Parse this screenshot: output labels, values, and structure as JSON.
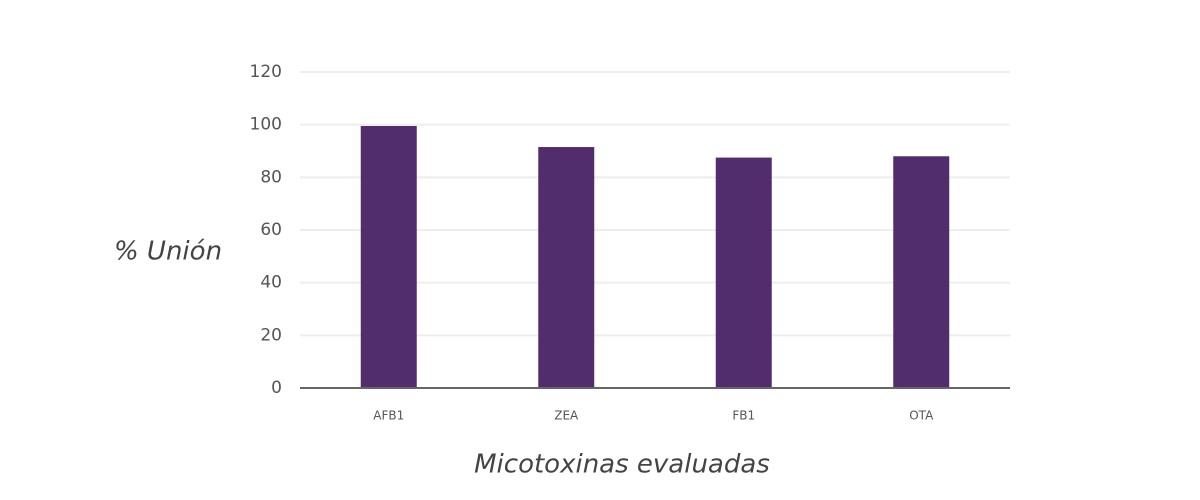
{
  "chart_data": {
    "type": "bar",
    "categories": [
      "AFB1",
      "ZEA",
      "FB1",
      "OTA"
    ],
    "values": [
      99.5,
      91.5,
      87.5,
      88
    ],
    "color": "#512d6d",
    "ylim": [
      0,
      120
    ],
    "yticks": [
      0,
      20,
      40,
      60,
      80,
      100,
      120
    ],
    "grid": true,
    "ylabel": "% Unión",
    "xlabel": "Micotoxinas evaluadas"
  }
}
